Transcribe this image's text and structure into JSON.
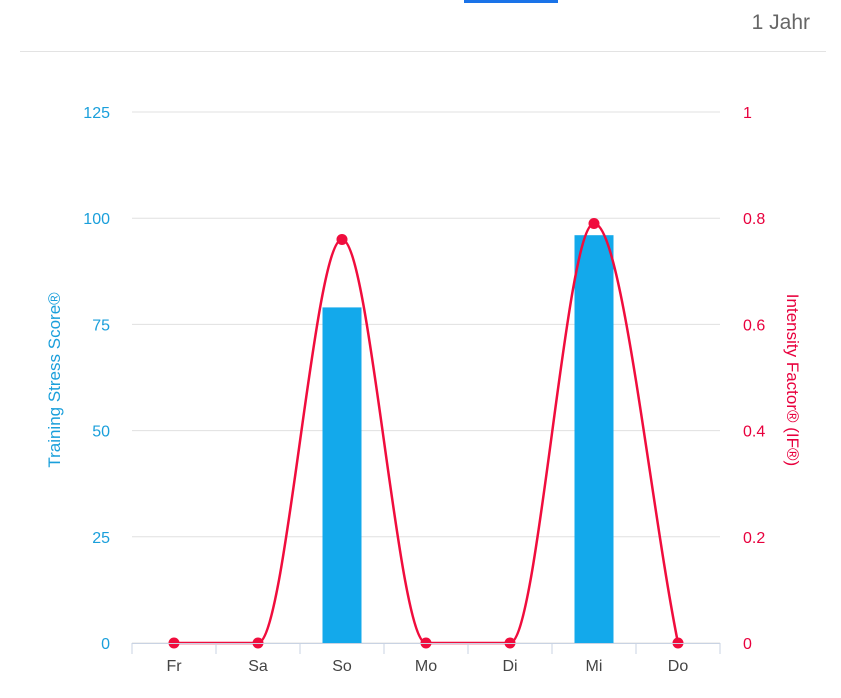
{
  "header": {
    "range_label": "1 Jahr"
  },
  "colors": {
    "bar": "#13a9eb",
    "line": "#f00d3d",
    "left_axis_text": "#1a9fdb",
    "right_axis_text": "#e8003d",
    "tab_indicator": "#1a73e8"
  },
  "chart_data": {
    "type": "bar",
    "categories": [
      "Fr",
      "Sa",
      "So",
      "Mo",
      "Di",
      "Mi",
      "Do"
    ],
    "series": [
      {
        "name": "Training Stress Score®",
        "type": "bar",
        "axis": "left",
        "values": [
          0,
          0,
          79,
          0,
          0,
          96,
          0
        ]
      },
      {
        "name": "Intensity Factor® (IF®)",
        "type": "line",
        "axis": "right",
        "values": [
          0,
          0,
          0.76,
          0,
          0,
          0.79,
          0
        ]
      }
    ],
    "y_left": {
      "label": "Training Stress Score®",
      "range": [
        0,
        125
      ],
      "ticks": [
        0,
        25,
        50,
        75,
        100,
        125
      ]
    },
    "y_right": {
      "label": "Intensity Factor® (IF®)",
      "range": [
        0,
        1
      ],
      "ticks": [
        "0",
        "0.2",
        "0.4",
        "0.6",
        "0.8",
        "1"
      ]
    },
    "grid": true
  }
}
